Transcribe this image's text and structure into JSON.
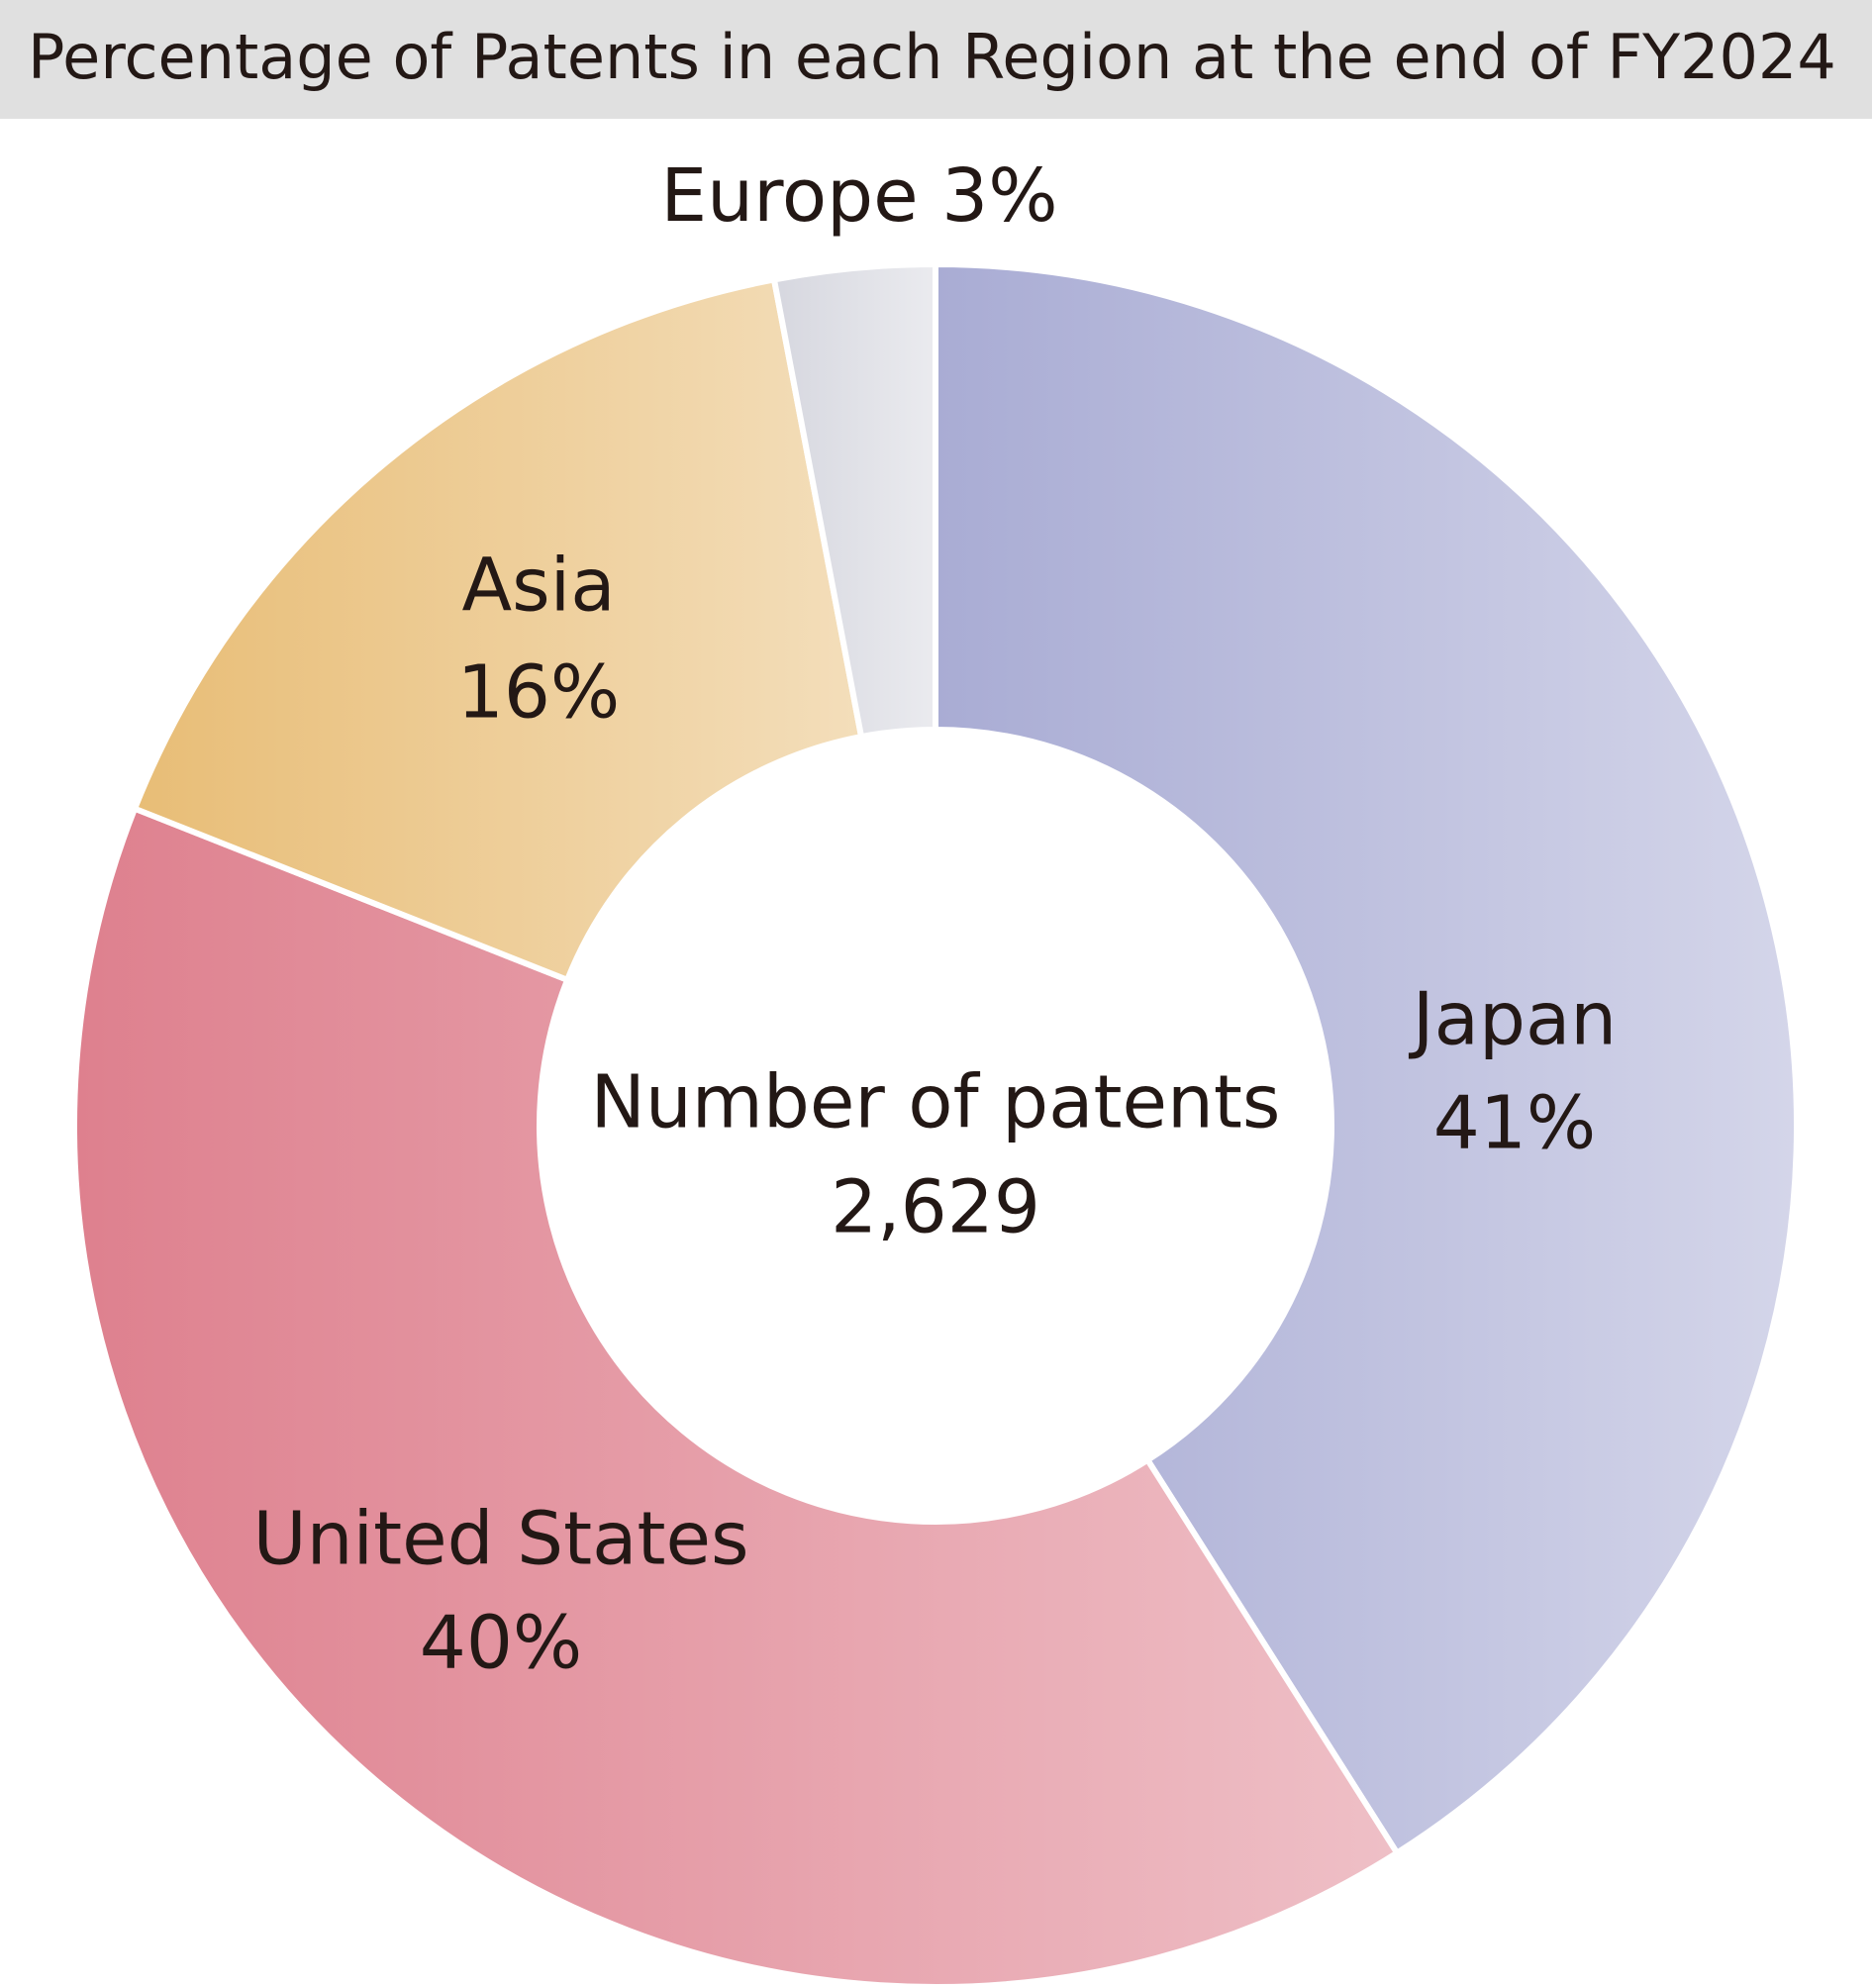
{
  "chart_data": {
    "type": "donut",
    "title": "Percentage of Patents in each Region at the end of FY2024",
    "categories": [
      "Japan",
      "United States",
      "Asia",
      "Europe"
    ],
    "values": [
      41,
      40,
      16,
      3
    ],
    "value_labels": [
      "41%",
      "40%",
      "16%",
      "3%"
    ],
    "colors": [
      "#a9acd4",
      "#de808e",
      "#e8bd76",
      "#d6d7df"
    ],
    "center_label": "Number of patents",
    "center_value": "2,629"
  }
}
